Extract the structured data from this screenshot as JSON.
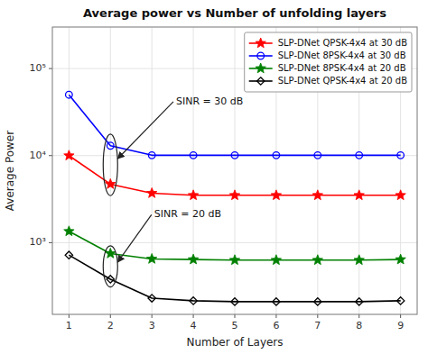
{
  "chart_data": {
    "type": "line",
    "title": "Average power vs Number of unfolding layers",
    "x_label": "Number of Layers",
    "y_label": "Average Power",
    "x": [
      1,
      2,
      3,
      4,
      5,
      6,
      7,
      8,
      9
    ],
    "series": [
      {
        "name": "SLP-DNet QPSK-4x4 at 30 dB",
        "color": "red",
        "marker": "star",
        "values": [
          10000,
          4700,
          3700,
          3500,
          3500,
          3500,
          3500,
          3500,
          3500
        ]
      },
      {
        "name": "SLP-DNet 8PSK-4x4 at 30 dB",
        "color": "blue",
        "marker": "circle",
        "values": [
          50000,
          13000,
          10100,
          10100,
          10100,
          10100,
          10100,
          10100,
          10100
        ]
      },
      {
        "name": "SLP-DNet 8PSK-4x4 at 20 dB",
        "color": "green",
        "marker": "star",
        "values": [
          1350,
          750,
          650,
          640,
          630,
          630,
          630,
          630,
          640
        ]
      },
      {
        "name": "SLP-DNet QPSK-4x4 at 20 dB",
        "color": "black",
        "marker": "diamond",
        "values": [
          720,
          380,
          230,
          215,
          210,
          210,
          210,
          210,
          215
        ]
      }
    ],
    "log": "y",
    "xlim": [
      0.6,
      9.4
    ],
    "ylim": [
      150,
      300000
    ],
    "xticks": [
      1,
      2,
      3,
      4,
      5,
      6,
      7,
      8,
      9
    ],
    "yticks": [
      {
        "value": 1000,
        "label": "10³"
      },
      {
        "value": 10000,
        "label": "10⁴"
      },
      {
        "value": 100000,
        "label": "10⁵"
      }
    ],
    "grid": true,
    "legend": "upper right",
    "annotations": [
      {
        "text": "SINR = 30 dB",
        "x": 2,
        "y": [
          13000,
          4700
        ]
      },
      {
        "text": "SINR = 20 dB",
        "x": 2,
        "y": [
          750,
          380
        ]
      }
    ]
  }
}
